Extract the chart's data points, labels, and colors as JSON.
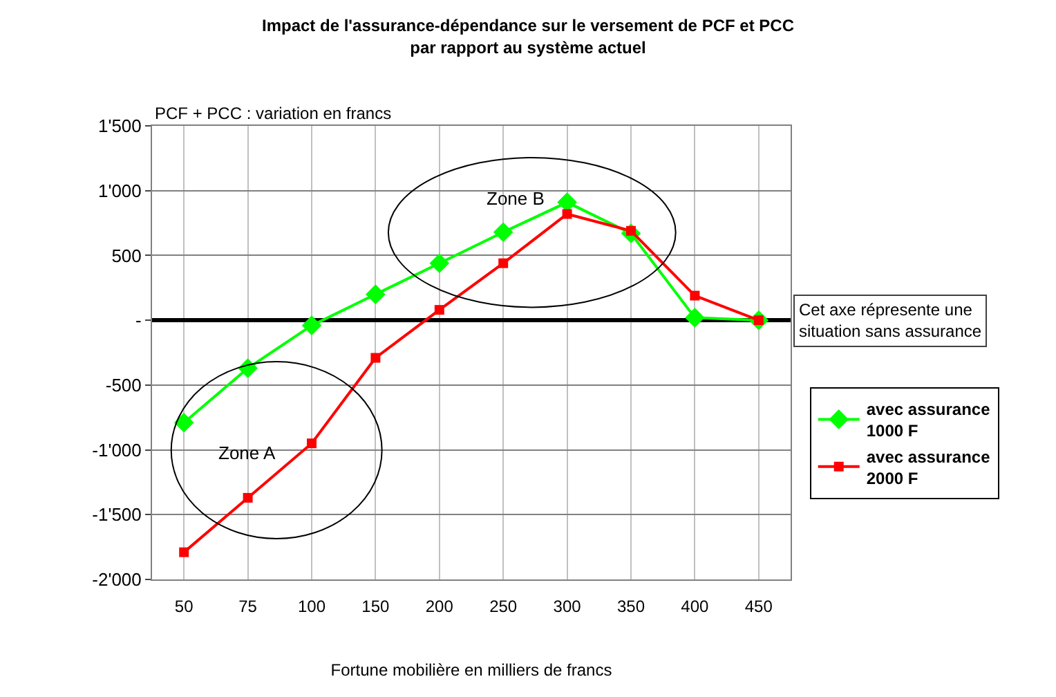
{
  "chart_data": {
    "type": "line",
    "title": "Impact de l'assurance-dépendance sur le versement de PCF et PCC\npar rapport au système actuel",
    "xlabel": "Fortune mobilière en milliers de francs",
    "ylabel": "PCF + PCC : variation en francs",
    "categories": [
      "50",
      "75",
      "100",
      "150",
      "200",
      "250",
      "300",
      "350",
      "400",
      "450"
    ],
    "series": [
      {
        "name": "avec assurance\n1000 F",
        "color": "#00ff00",
        "marker": "diamond",
        "values": [
          -790,
          -370,
          -40,
          200,
          440,
          680,
          910,
          670,
          20,
          0
        ]
      },
      {
        "name": "avec assurance\n2000 F",
        "color": "#ff0000",
        "marker": "square",
        "values": [
          -1790,
          -1370,
          -950,
          -290,
          80,
          440,
          820,
          690,
          190,
          0
        ]
      }
    ],
    "ylim": [
      -2000,
      1500
    ],
    "yticks": [
      {
        "value": 1500,
        "label": "1'500"
      },
      {
        "value": 1000,
        "label": "1'000"
      },
      500,
      {
        "value": 0,
        "label": "-"
      },
      -500,
      {
        "value": -1000,
        "label": "-1'000"
      },
      {
        "value": -1500,
        "label": "-1'500"
      },
      {
        "value": -2000,
        "label": "-2'000"
      }
    ],
    "grid": true,
    "legend": "right",
    "annotations": [
      "Zone A",
      "Zone B",
      "Cet axe répresente une\nsituation sans assurance"
    ]
  }
}
